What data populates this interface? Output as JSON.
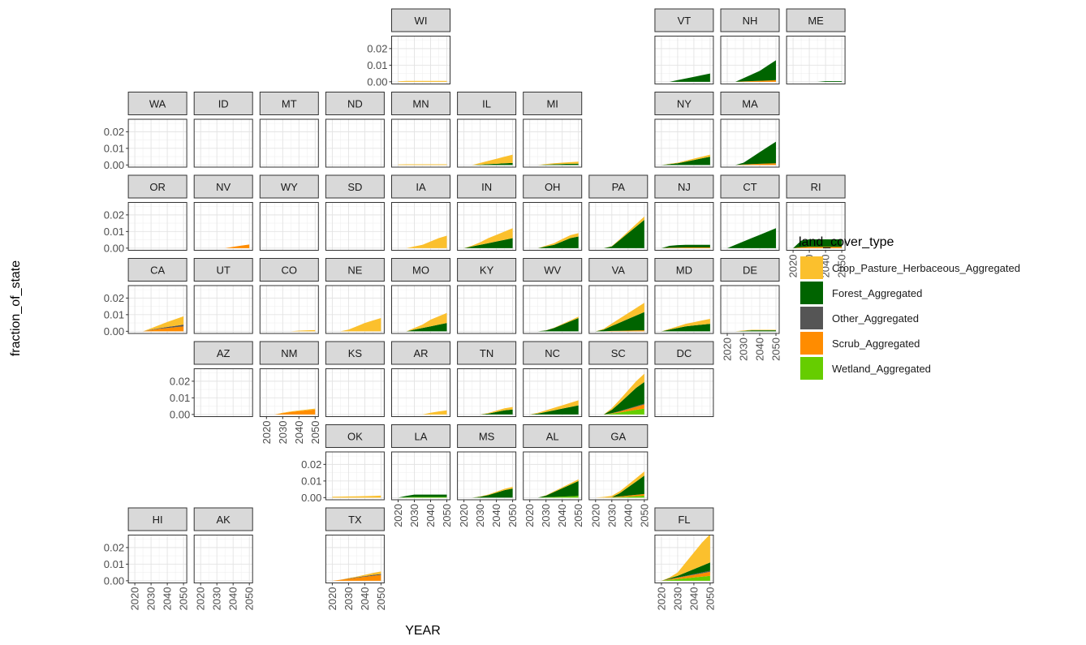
{
  "chart_data": {
    "type": "area",
    "stacked": true,
    "layout": "geofacet_us_states",
    "xlabel": "YEAR",
    "ylabel": "fraction_of_state",
    "x_ticks": [
      2020,
      2030,
      2040,
      2050
    ],
    "y_ticks": [
      0.0,
      0.01,
      0.02
    ],
    "y_tick_labels": [
      "0.00",
      "0.01",
      "0.02"
    ],
    "xlim": [
      2016,
      2052
    ],
    "ylim": [
      -0.0013,
      0.0275
    ],
    "grid": true,
    "legend": {
      "title": "land_cover_type",
      "position": "right",
      "entries": [
        {
          "name": "Crop_Pasture_Herbaceous_Aggregated",
          "color": "#FBC02D"
        },
        {
          "name": "Forest_Aggregated",
          "color": "#006400"
        },
        {
          "name": "Other_Aggregated",
          "color": "#555555"
        },
        {
          "name": "Scrub_Aggregated",
          "color": "#FF8C00"
        },
        {
          "name": "Wetland_Aggregated",
          "color": "#66CD00"
        }
      ]
    },
    "series_order": [
      "Wetland_Aggregated",
      "Scrub_Aggregated",
      "Other_Aggregated",
      "Forest_Aggregated",
      "Crop_Pasture_Herbaceous_Aggregated"
    ],
    "x": [
      2020,
      2025,
      2030,
      2035,
      2040,
      2045,
      2050
    ],
    "panels": [
      {
        "state": "WI",
        "values": {
          "crop": [
            0.0003,
            0.0005,
            0.0005,
            0.0005,
            0.0005,
            0.0005,
            0.0005
          ]
        }
      },
      {
        "state": "VT",
        "values": {
          "forest": [
            0,
            0,
            0.001,
            0.002,
            0.003,
            0.004,
            0.005
          ]
        }
      },
      {
        "state": "NH",
        "values": {
          "scrub": [
            0,
            0,
            0.0002,
            0.0004,
            0.0006,
            0.0008,
            0.001
          ],
          "forest": [
            0,
            0,
            0.002,
            0.004,
            0.006,
            0.009,
            0.012
          ]
        }
      },
      {
        "state": "ME",
        "values": {
          "forest": [
            0,
            0,
            0,
            0,
            0.0004,
            0.0004,
            0.0004
          ]
        }
      },
      {
        "state": "WA",
        "values": {}
      },
      {
        "state": "ID",
        "values": {}
      },
      {
        "state": "MT",
        "values": {}
      },
      {
        "state": "ND",
        "values": {}
      },
      {
        "state": "MN",
        "values": {
          "crop": [
            0.0003,
            0.0004,
            0.0004,
            0.0004,
            0.0004,
            0.0004,
            0.0004
          ]
        }
      },
      {
        "state": "IL",
        "values": {
          "forest": [
            0,
            0,
            0.0002,
            0.0005,
            0.0007,
            0.001,
            0.0012
          ],
          "crop": [
            0,
            0,
            0.001,
            0.002,
            0.003,
            0.004,
            0.005
          ]
        }
      },
      {
        "state": "MI",
        "values": {
          "forest": [
            0,
            0,
            0.0002,
            0.0004,
            0.0006,
            0.0007,
            0.0008
          ],
          "crop": [
            0,
            0,
            0.0004,
            0.0006,
            0.0008,
            0.001,
            0.0012
          ]
        }
      },
      {
        "state": "NY",
        "values": {
          "forest": [
            0,
            0.0005,
            0.001,
            0.002,
            0.003,
            0.004,
            0.005
          ],
          "crop": [
            0,
            0.0002,
            0.0004,
            0.0006,
            0.0008,
            0.001,
            0.0012
          ]
        }
      },
      {
        "state": "MA",
        "values": {
          "scrub": [
            0,
            0,
            0.0003,
            0.0005,
            0.0007,
            0.0009,
            0.001
          ],
          "forest": [
            0,
            0,
            0.001,
            0.004,
            0.007,
            0.01,
            0.013
          ]
        }
      },
      {
        "state": "OR",
        "values": {}
      },
      {
        "state": "NV",
        "values": {
          "scrub": [
            0,
            0,
            0,
            0,
            0.0008,
            0.0015,
            0.0022
          ]
        }
      },
      {
        "state": "WY",
        "values": {}
      },
      {
        "state": "SD",
        "values": {}
      },
      {
        "state": "IA",
        "values": {
          "crop": [
            0,
            0,
            0.001,
            0.002,
            0.004,
            0.006,
            0.0075
          ]
        }
      },
      {
        "state": "IN",
        "values": {
          "forest": [
            0,
            0.001,
            0.002,
            0.003,
            0.004,
            0.005,
            0.006
          ],
          "crop": [
            0,
            0.0005,
            0.0015,
            0.003,
            0.004,
            0.005,
            0.006
          ]
        }
      },
      {
        "state": "OH",
        "values": {
          "forest": [
            0,
            0,
            0.001,
            0.002,
            0.004,
            0.006,
            0.007
          ],
          "crop": [
            0,
            0,
            0.0005,
            0.001,
            0.0015,
            0.0018,
            0.002
          ]
        }
      },
      {
        "state": "PA",
        "values": {
          "forest": [
            0,
            0,
            0.001,
            0.005,
            0.009,
            0.013,
            0.017
          ],
          "crop": [
            0,
            0,
            0.0002,
            0.0005,
            0.001,
            0.0015,
            0.002
          ]
        }
      },
      {
        "state": "NJ",
        "values": {
          "scrub": [
            0,
            0.0002,
            0.0003,
            0.0004,
            0.0004,
            0.0004,
            0.0004
          ],
          "forest": [
            0,
            0.0012,
            0.0015,
            0.0016,
            0.0016,
            0.0016,
            0.0016
          ]
        }
      },
      {
        "state": "CT",
        "values": {
          "forest": [
            0,
            0.002,
            0.004,
            0.006,
            0.008,
            0.01,
            0.012
          ]
        }
      },
      {
        "state": "RI",
        "values": {
          "scrub": [
            0,
            0.0005,
            0.0008,
            0.0008,
            0.0008,
            0.0008,
            0.0008
          ],
          "forest": [
            0,
            0.004,
            0.0045,
            0.0045,
            0.0045,
            0.0045,
            0.0045
          ]
        }
      },
      {
        "state": "CA",
        "values": {
          "scrub": [
            0,
            0,
            0.0008,
            0.0015,
            0.002,
            0.0025,
            0.003
          ],
          "other": [
            0,
            0,
            0.0002,
            0.0004,
            0.0006,
            0.0008,
            0.001
          ],
          "crop": [
            0,
            0,
            0.0008,
            0.0018,
            0.003,
            0.004,
            0.005
          ]
        }
      },
      {
        "state": "UT",
        "values": {}
      },
      {
        "state": "CO",
        "values": {
          "crop": [
            0,
            0,
            0,
            0,
            0.0004,
            0.0006,
            0.0007
          ]
        }
      },
      {
        "state": "NE",
        "values": {
          "crop": [
            0,
            0,
            0.001,
            0.003,
            0.005,
            0.0065,
            0.008
          ]
        }
      },
      {
        "state": "MO",
        "values": {
          "forest": [
            0,
            0,
            0.001,
            0.002,
            0.003,
            0.004,
            0.005
          ],
          "crop": [
            0,
            0,
            0.001,
            0.002,
            0.004,
            0.005,
            0.006
          ]
        }
      },
      {
        "state": "KY",
        "values": {}
      },
      {
        "state": "WV",
        "values": {
          "forest": [
            0,
            0,
            0.0005,
            0.002,
            0.004,
            0.006,
            0.008
          ],
          "crop": [
            0,
            0,
            0.0001,
            0.0002,
            0.0004,
            0.0006,
            0.0008
          ]
        }
      },
      {
        "state": "VA",
        "values": {
          "scrub": [
            0,
            0,
            0.0002,
            0.0003,
            0.0004,
            0.0005,
            0.0006
          ],
          "forest": [
            0,
            0.001,
            0.003,
            0.005,
            0.007,
            0.009,
            0.011
          ],
          "crop": [
            0,
            0.0005,
            0.0015,
            0.0025,
            0.0035,
            0.0045,
            0.0055
          ]
        }
      },
      {
        "state": "MD",
        "values": {
          "forest": [
            0,
            0.001,
            0.002,
            0.003,
            0.0035,
            0.004,
            0.0045
          ],
          "crop": [
            0,
            0.0005,
            0.001,
            0.0015,
            0.002,
            0.0025,
            0.003
          ]
        }
      },
      {
        "state": "DE",
        "values": {
          "forest": [
            0,
            0,
            0.0002,
            0.0006,
            0.0006,
            0.0006,
            0.0006
          ],
          "crop": [
            0,
            0,
            0.0003,
            0.0003,
            0.0003,
            0.0003,
            0.0003
          ]
        }
      },
      {
        "state": "AZ",
        "values": {}
      },
      {
        "state": "NM",
        "values": {
          "scrub": [
            0,
            0,
            0.0008,
            0.0015,
            0.002,
            0.0025,
            0.003
          ],
          "crop": [
            0,
            0,
            0.0002,
            0.0003,
            0.0004,
            0.0005,
            0.0005
          ]
        }
      },
      {
        "state": "KS",
        "values": {}
      },
      {
        "state": "AR",
        "values": {
          "crop": [
            0,
            0,
            0,
            0,
            0.001,
            0.0018,
            0.0025
          ]
        }
      },
      {
        "state": "TN",
        "values": {
          "forest": [
            0,
            0,
            0,
            0.0005,
            0.0015,
            0.0025,
            0.003
          ],
          "crop": [
            0,
            0,
            0,
            0.0004,
            0.0008,
            0.0012,
            0.0015
          ]
        }
      },
      {
        "state": "NC",
        "values": {
          "forest": [
            0,
            0.0005,
            0.0015,
            0.0025,
            0.0035,
            0.0045,
            0.0055
          ],
          "crop": [
            0,
            0.0005,
            0.001,
            0.0015,
            0.002,
            0.0025,
            0.003
          ]
        }
      },
      {
        "state": "SC",
        "values": {
          "wetland": [
            0,
            0,
            0.0005,
            0.0012,
            0.002,
            0.0028,
            0.0035
          ],
          "scrub": [
            0,
            0,
            0.0002,
            0.0006,
            0.0012,
            0.0018,
            0.0025
          ],
          "other": [
            0,
            0,
            0.0001,
            0.0002,
            0.0003,
            0.0004,
            0.0005
          ],
          "forest": [
            0,
            0,
            0.002,
            0.005,
            0.008,
            0.011,
            0.013
          ],
          "crop": [
            0,
            0,
            0.001,
            0.002,
            0.003,
            0.004,
            0.005
          ]
        }
      },
      {
        "state": "DC",
        "values": {}
      },
      {
        "state": "OK",
        "values": {
          "crop": [
            0.0005,
            0.0006,
            0.0007,
            0.0008,
            0.0009,
            0.001,
            0.0012
          ]
        }
      },
      {
        "state": "LA",
        "values": {
          "wetland": [
            0,
            0.0002,
            0.0004,
            0.0004,
            0.0004,
            0.0004,
            0.0004
          ],
          "forest": [
            0,
            0.0008,
            0.0014,
            0.0014,
            0.0014,
            0.0014,
            0.0014
          ]
        }
      },
      {
        "state": "MS",
        "values": {
          "forest": [
            0,
            0,
            0.0005,
            0.0015,
            0.003,
            0.0045,
            0.0055
          ],
          "crop": [
            0,
            0,
            0.0002,
            0.0004,
            0.0006,
            0.0008,
            0.001
          ]
        }
      },
      {
        "state": "AL",
        "values": {
          "wetland": [
            0,
            0,
            0.0002,
            0.0004,
            0.0006,
            0.0008,
            0.001
          ],
          "forest": [
            0,
            0,
            0.001,
            0.003,
            0.005,
            0.007,
            0.009
          ],
          "crop": [
            0,
            0,
            0.0002,
            0.0004,
            0.0006,
            0.0008,
            0.001
          ]
        }
      },
      {
        "state": "GA",
        "values": {
          "wetland": [
            0,
            0,
            0.0001,
            0.0003,
            0.0006,
            0.0009,
            0.0012
          ],
          "scrub": [
            0,
            0,
            0.0002,
            0.0004,
            0.0006,
            0.0008,
            0.001
          ],
          "forest": [
            0,
            0,
            0,
            0.002,
            0.005,
            0.008,
            0.011
          ],
          "crop": [
            0,
            0.0004,
            0.0008,
            0.0012,
            0.0016,
            0.002,
            0.0025
          ]
        }
      },
      {
        "state": "HI",
        "values": {}
      },
      {
        "state": "AK",
        "values": {}
      },
      {
        "state": "TX",
        "values": {
          "scrub": [
            0,
            0.0006,
            0.0012,
            0.0018,
            0.0024,
            0.003,
            0.0035
          ],
          "other": [
            0,
            0,
            0.0002,
            0.0003,
            0.0004,
            0.0005,
            0.0006
          ],
          "crop": [
            0,
            0,
            0.0002,
            0.0004,
            0.0008,
            0.0012,
            0.0015
          ]
        }
      },
      {
        "state": "FL",
        "values": {
          "wetland": [
            0,
            0.0005,
            0.001,
            0.0015,
            0.002,
            0.0025,
            0.003
          ],
          "scrub": [
            0,
            0.0004,
            0.0008,
            0.0012,
            0.0016,
            0.002,
            0.0024
          ],
          "other": [
            0,
            0.0001,
            0.0002,
            0.0003,
            0.0004,
            0.0005,
            0.0006
          ],
          "forest": [
            0,
            0.0005,
            0.001,
            0.002,
            0.003,
            0.004,
            0.005
          ],
          "crop": [
            0,
            0.0005,
            0.002,
            0.006,
            0.01,
            0.014,
            0.017
          ]
        }
      }
    ]
  }
}
